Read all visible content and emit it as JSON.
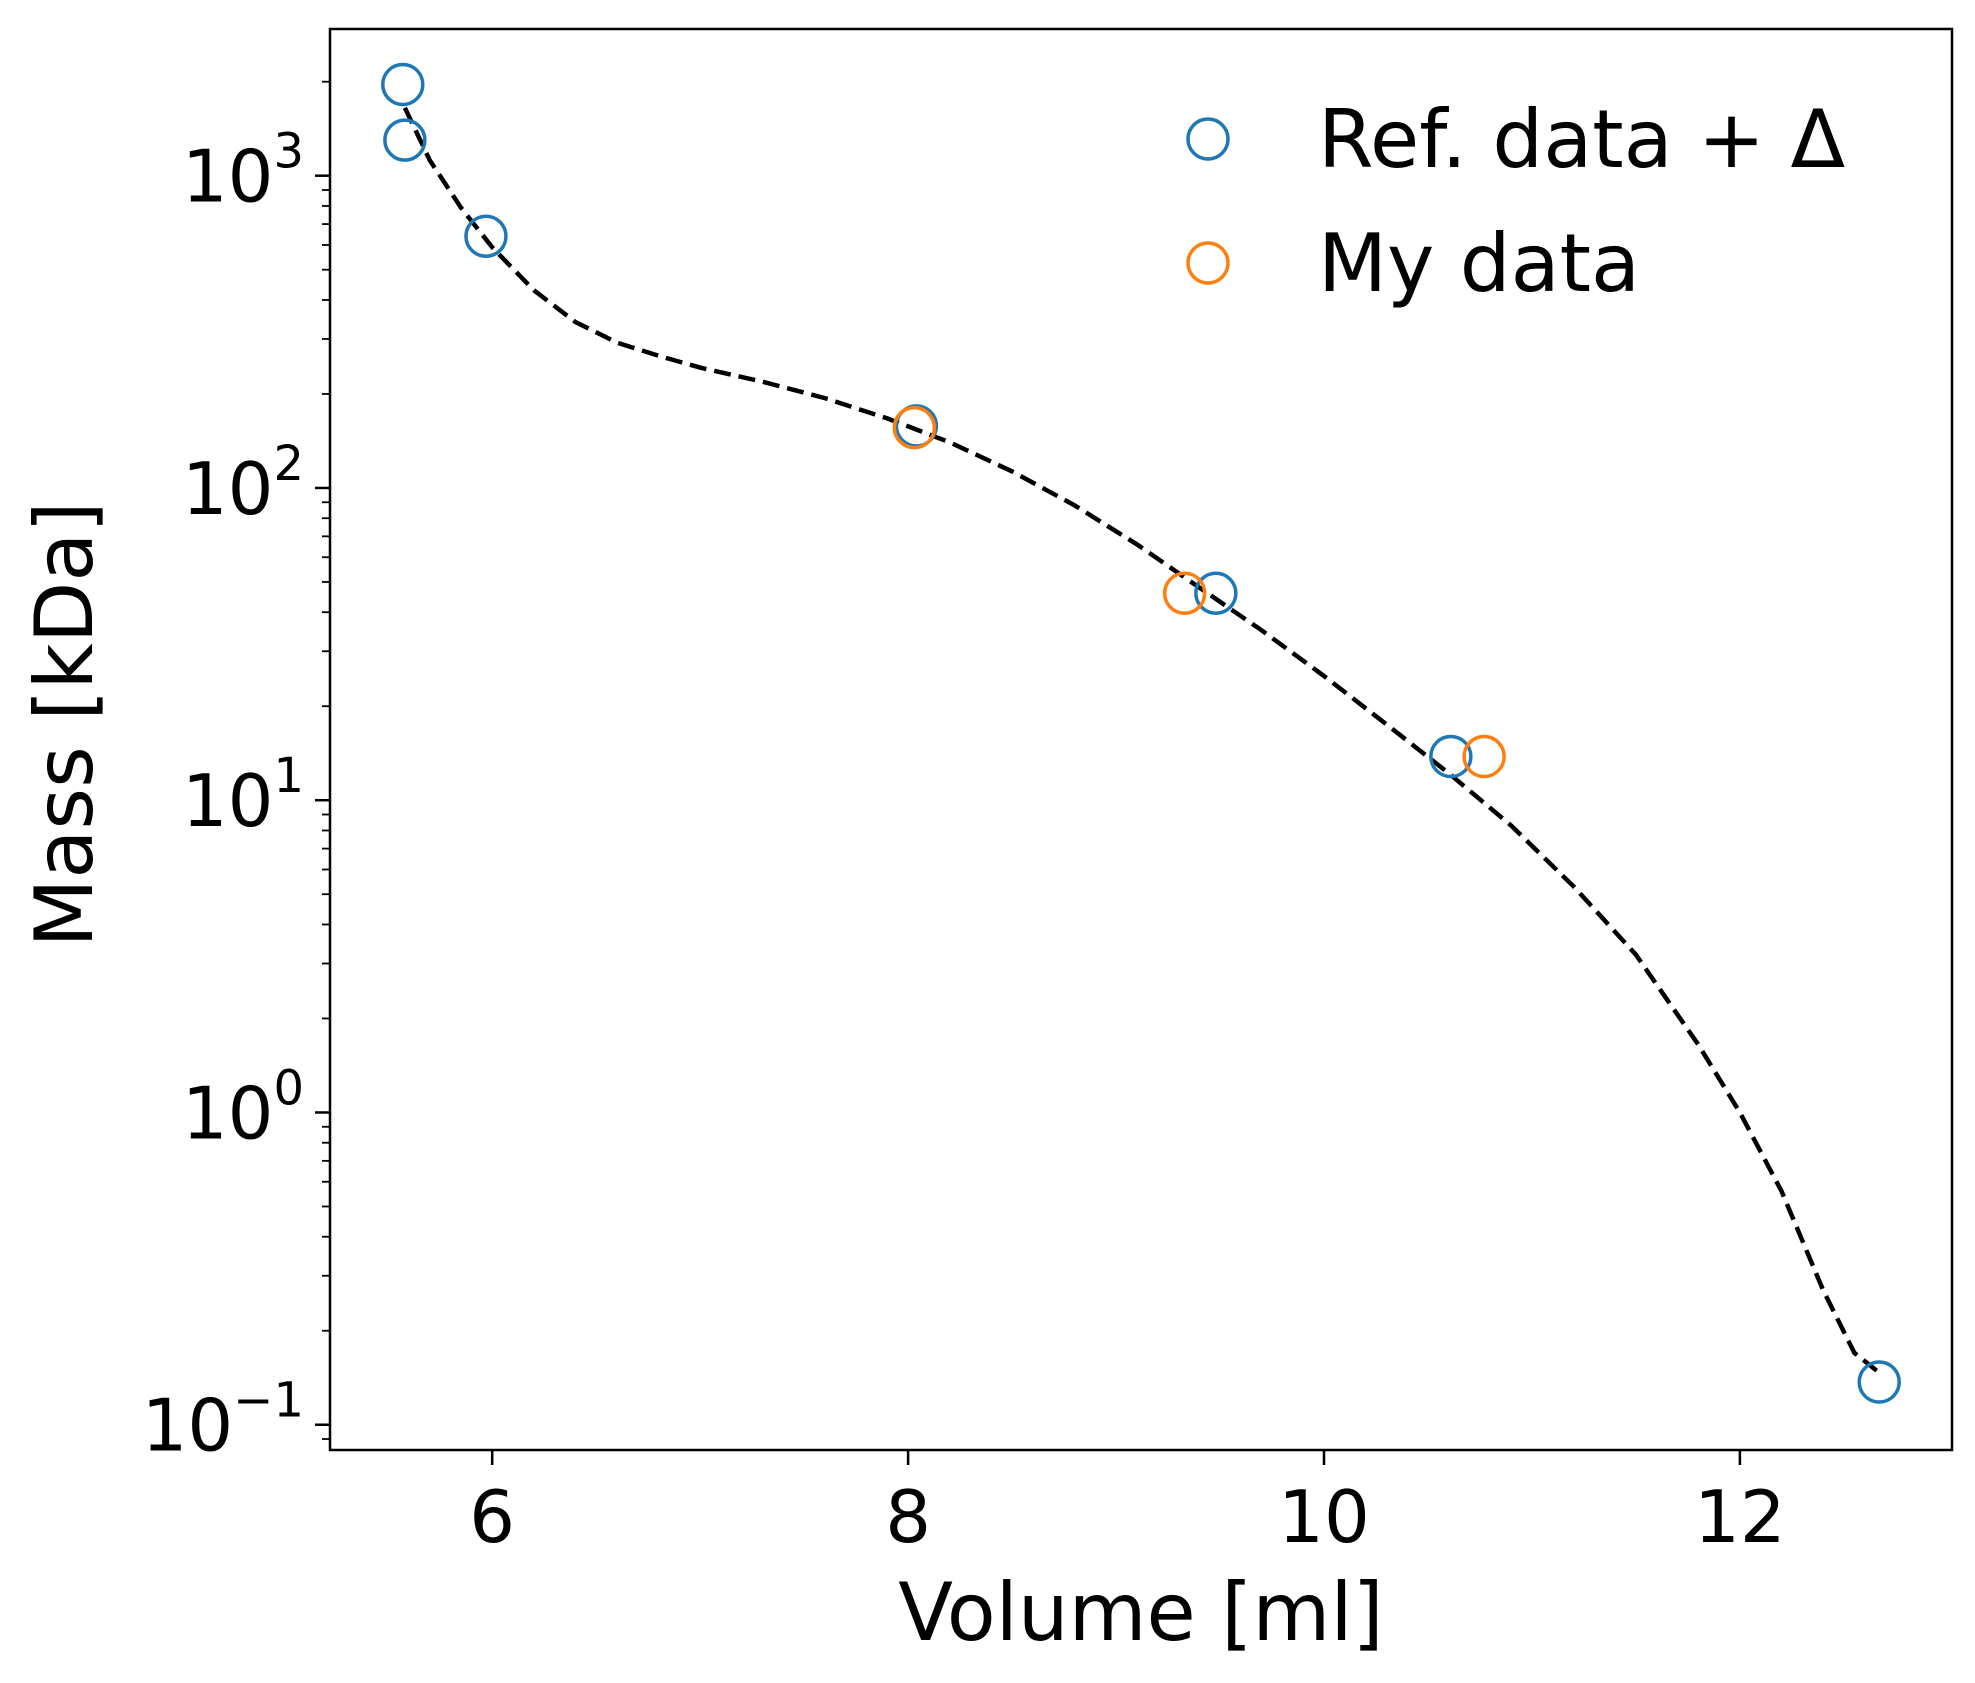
{
  "chart_data": {
    "type": "scatter",
    "xlabel": "Volume [ml]",
    "ylabel": "Mass [kDa]",
    "xlim": [
      5.22,
      13.02
    ],
    "ylim": [
      0.083,
      2950
    ],
    "yscale": "log",
    "x_ticks": [
      6,
      8,
      10,
      12
    ],
    "x_tick_labels": [
      "6",
      "8",
      "10",
      "12"
    ],
    "y_ticks": [
      0.1,
      1,
      10,
      100,
      1000
    ],
    "y_tick_labels": [
      {
        "base": "10",
        "exp": "−1"
      },
      {
        "base": "10",
        "exp": "0"
      },
      {
        "base": "10",
        "exp": "1"
      },
      {
        "base": "10",
        "exp": "2"
      },
      {
        "base": "10",
        "exp": "3"
      }
    ],
    "grid": false,
    "legend_position": "top-right",
    "series": [
      {
        "name": "Ref. data + Δ",
        "marker": "open-circle",
        "color": "#1f77b4",
        "x": [
          5.57,
          5.58,
          5.97,
          8.04,
          9.48,
          10.61,
          12.67
        ],
        "y": [
          1960,
          1300,
          640,
          158,
          46,
          13.8,
          0.137
        ]
      },
      {
        "name": "My data",
        "marker": "open-circle",
        "color": "#ff7f0e",
        "x": [
          8.03,
          9.33,
          10.77
        ],
        "y": [
          156,
          46,
          13.8
        ]
      },
      {
        "marker": "dashed-line",
        "color": "#000000",
        "x": [
          5.58,
          5.7,
          5.85,
          6.0,
          6.2,
          6.4,
          6.6,
          6.8,
          7.0,
          7.3,
          7.6,
          7.9,
          8.2,
          8.5,
          8.8,
          9.1,
          9.4,
          9.7,
          10.0,
          10.3,
          10.6,
          10.9,
          11.2,
          11.5,
          11.8,
          12.0,
          12.2,
          12.4,
          12.55,
          12.68
        ],
        "y": [
          1650,
          1120,
          790,
          590,
          430,
          340,
          292,
          265,
          243,
          219,
          194,
          167,
          140,
          113,
          88,
          66,
          48,
          35,
          25,
          17.5,
          12.2,
          8.3,
          5.3,
          3.2,
          1.65,
          1.0,
          0.56,
          0.27,
          0.17,
          0.145
        ]
      }
    ]
  }
}
